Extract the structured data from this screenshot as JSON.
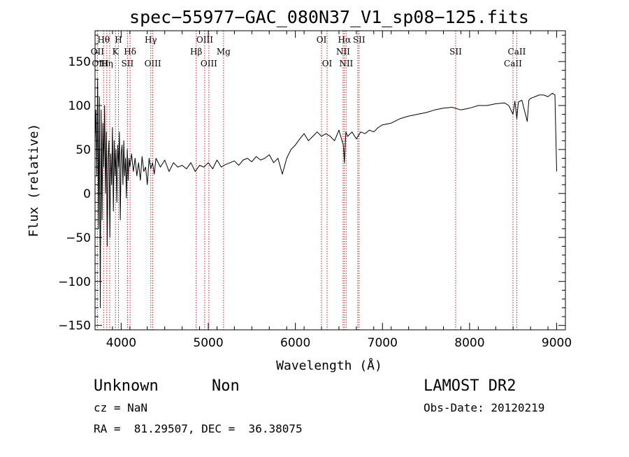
{
  "chart_data": {
    "type": "line",
    "title": "spec−55977−GAC_080N37_V1_sp08−125.fits",
    "xlabel": "Wavelength (Å)",
    "ylabel": "Flux (relative)",
    "xlim": [
      3700,
      9100
    ],
    "ylim": [
      -155,
      185
    ],
    "x_ticks": [
      4000,
      5000,
      6000,
      7000,
      8000,
      9000
    ],
    "y_ticks": [
      -150,
      -100,
      -50,
      0,
      50,
      100,
      150
    ],
    "y_tick_labels": [
      "−150",
      "−100",
      "−50",
      "0",
      "50",
      "100",
      "150"
    ],
    "grid": false,
    "series": [
      {
        "x": [
          3700,
          3710,
          3720,
          3730,
          3740,
          3750,
          3760,
          3770,
          3780,
          3790,
          3800,
          3810,
          3820,
          3830,
          3840,
          3850,
          3860,
          3870,
          3880,
          3890,
          3900,
          3910,
          3920,
          3930,
          3940,
          3950,
          3960,
          3970,
          3980,
          3990,
          4000,
          4010,
          4020,
          4030,
          4040,
          4050,
          4060,
          4070,
          4080,
          4090,
          4100,
          4120,
          4140,
          4160,
          4180,
          4200,
          4220,
          4240,
          4260,
          4280,
          4300,
          4320,
          4340,
          4360,
          4380,
          4400,
          4450,
          4500,
          4550,
          4600,
          4650,
          4700,
          4750,
          4800,
          4850,
          4900,
          4950,
          5000,
          5050,
          5100,
          5150,
          5200,
          5250,
          5300,
          5350,
          5400,
          5450,
          5500,
          5550,
          5600,
          5650,
          5700,
          5750,
          5800,
          5850,
          5900,
          5950,
          6000,
          6050,
          6100,
          6150,
          6200,
          6250,
          6300,
          6350,
          6400,
          6450,
          6500,
          6550,
          6563,
          6580,
          6600,
          6650,
          6700,
          6750,
          6800,
          6850,
          6900,
          6950,
          7000,
          7100,
          7200,
          7300,
          7400,
          7500,
          7600,
          7700,
          7800,
          7900,
          8000,
          8100,
          8200,
          8300,
          8400,
          8450,
          8498,
          8520,
          8542,
          8560,
          8600,
          8662,
          8680,
          8700,
          8750,
          8800,
          8850,
          8900,
          8950,
          8980,
          9000
        ],
        "y": [
          60,
          95,
          20,
          130,
          -40,
          110,
          -130,
          95,
          -30,
          80,
          30,
          100,
          0,
          70,
          -60,
          40,
          60,
          -50,
          45,
          10,
          75,
          -20,
          60,
          20,
          50,
          -10,
          55,
          30,
          70,
          -30,
          45,
          55,
          10,
          60,
          20,
          40,
          -5,
          50,
          15,
          40,
          30,
          45,
          25,
          40,
          20,
          35,
          15,
          42,
          25,
          30,
          10,
          40,
          28,
          35,
          22,
          40,
          30,
          38,
          25,
          35,
          30,
          32,
          28,
          35,
          25,
          32,
          30,
          35,
          28,
          38,
          30,
          33,
          35,
          37,
          32,
          38,
          40,
          36,
          42,
          38,
          40,
          44,
          35,
          40,
          22,
          40,
          50,
          55,
          62,
          68,
          60,
          65,
          70,
          65,
          68,
          65,
          60,
          72,
          55,
          35,
          70,
          65,
          70,
          62,
          70,
          68,
          72,
          70,
          75,
          78,
          80,
          85,
          88,
          90,
          92,
          95,
          97,
          98,
          95,
          97,
          100,
          100,
          102,
          103,
          100,
          90,
          105,
          85,
          104,
          106,
          82,
          106,
          108,
          110,
          112,
          112,
          110,
          114,
          112,
          25
        ]
      }
    ],
    "line_markers": [
      {
        "name": "OII",
        "wavelength": 3727
      },
      {
        "name": "Hθ",
        "wavelength": 3798
      },
      {
        "name": "Hη",
        "wavelength": 3835
      },
      {
        "name": "OIII",
        "wavelength": 3868
      },
      {
        "name": "K",
        "wavelength": 3934
      },
      {
        "name": "H",
        "wavelength": 3969
      },
      {
        "name": "SII",
        "wavelength": 4072
      },
      {
        "name": "Hδ",
        "wavelength": 4102
      },
      {
        "name": "Hγ",
        "wavelength": 4340
      },
      {
        "name": "OIII",
        "wavelength": 4363
      },
      {
        "name": "Hβ",
        "wavelength": 4861
      },
      {
        "name": "OIII",
        "wavelength": 4959
      },
      {
        "name": "OIII",
        "wavelength": 5007
      },
      {
        "name": "Mg",
        "wavelength": 5175
      },
      {
        "name": "OI",
        "wavelength": 6300
      },
      {
        "name": "OI",
        "wavelength": 6364
      },
      {
        "name": "NII",
        "wavelength": 6548
      },
      {
        "name": "Hα",
        "wavelength": 6563
      },
      {
        "name": "NII",
        "wavelength": 6583
      },
      {
        "name": "SII",
        "wavelength": 6716
      },
      {
        "name": "SII",
        "wavelength": 6731
      },
      {
        "name": "SII",
        "wavelength": 7840
      },
      {
        "name": "CaII",
        "wavelength": 8498
      },
      {
        "name": "CaII",
        "wavelength": 8542
      }
    ],
    "marker_labels": [
      {
        "text": "Hθ",
        "wavelength": 3798,
        "row": 1
      },
      {
        "text": "H",
        "wavelength": 3969,
        "row": 1
      },
      {
        "text": "Hγ",
        "wavelength": 4340,
        "row": 1
      },
      {
        "text": "OIII",
        "wavelength": 4959,
        "row": 1
      },
      {
        "text": "OI",
        "wavelength": 6300,
        "row": 1
      },
      {
        "text": "Hα",
        "wavelength": 6563,
        "row": 1
      },
      {
        "text": "SII",
        "wavelength": 6731,
        "row": 1
      },
      {
        "text": "OII",
        "wavelength": 3727,
        "row": 2
      },
      {
        "text": "K",
        "wavelength": 3934,
        "row": 2
      },
      {
        "text": "Hδ",
        "wavelength": 4102,
        "row": 2
      },
      {
        "text": "Hβ",
        "wavelength": 4861,
        "row": 2
      },
      {
        "text": "Mg",
        "wavelength": 5175,
        "row": 2
      },
      {
        "text": "NII",
        "wavelength": 6548,
        "row": 2
      },
      {
        "text": "SII",
        "wavelength": 7840,
        "row": 2
      },
      {
        "text": "CaII",
        "wavelength": 8542,
        "row": 2
      },
      {
        "text": "OIII",
        "wavelength": 3760,
        "row": 3
      },
      {
        "text": "Hη",
        "wavelength": 3835,
        "row": 3
      },
      {
        "text": "SII",
        "wavelength": 4072,
        "row": 3
      },
      {
        "text": "OIII",
        "wavelength": 4363,
        "row": 3
      },
      {
        "text": "OIII",
        "wavelength": 5007,
        "row": 3
      },
      {
        "text": "OI",
        "wavelength": 6364,
        "row": 3
      },
      {
        "text": "NII",
        "wavelength": 6583,
        "row": 3
      },
      {
        "text": "CaII",
        "wavelength": 8498,
        "row": 3
      }
    ],
    "marker_color": "#b22222",
    "line_color": "#000000"
  },
  "info": {
    "class_text": "Unknown",
    "subclass_text": "Non",
    "survey": "LAMOST DR2",
    "cz": "cz = NaN",
    "obs_date": "Obs-Date: 20120219",
    "coords": "RA =  81.29507, DEC =  36.38075"
  }
}
